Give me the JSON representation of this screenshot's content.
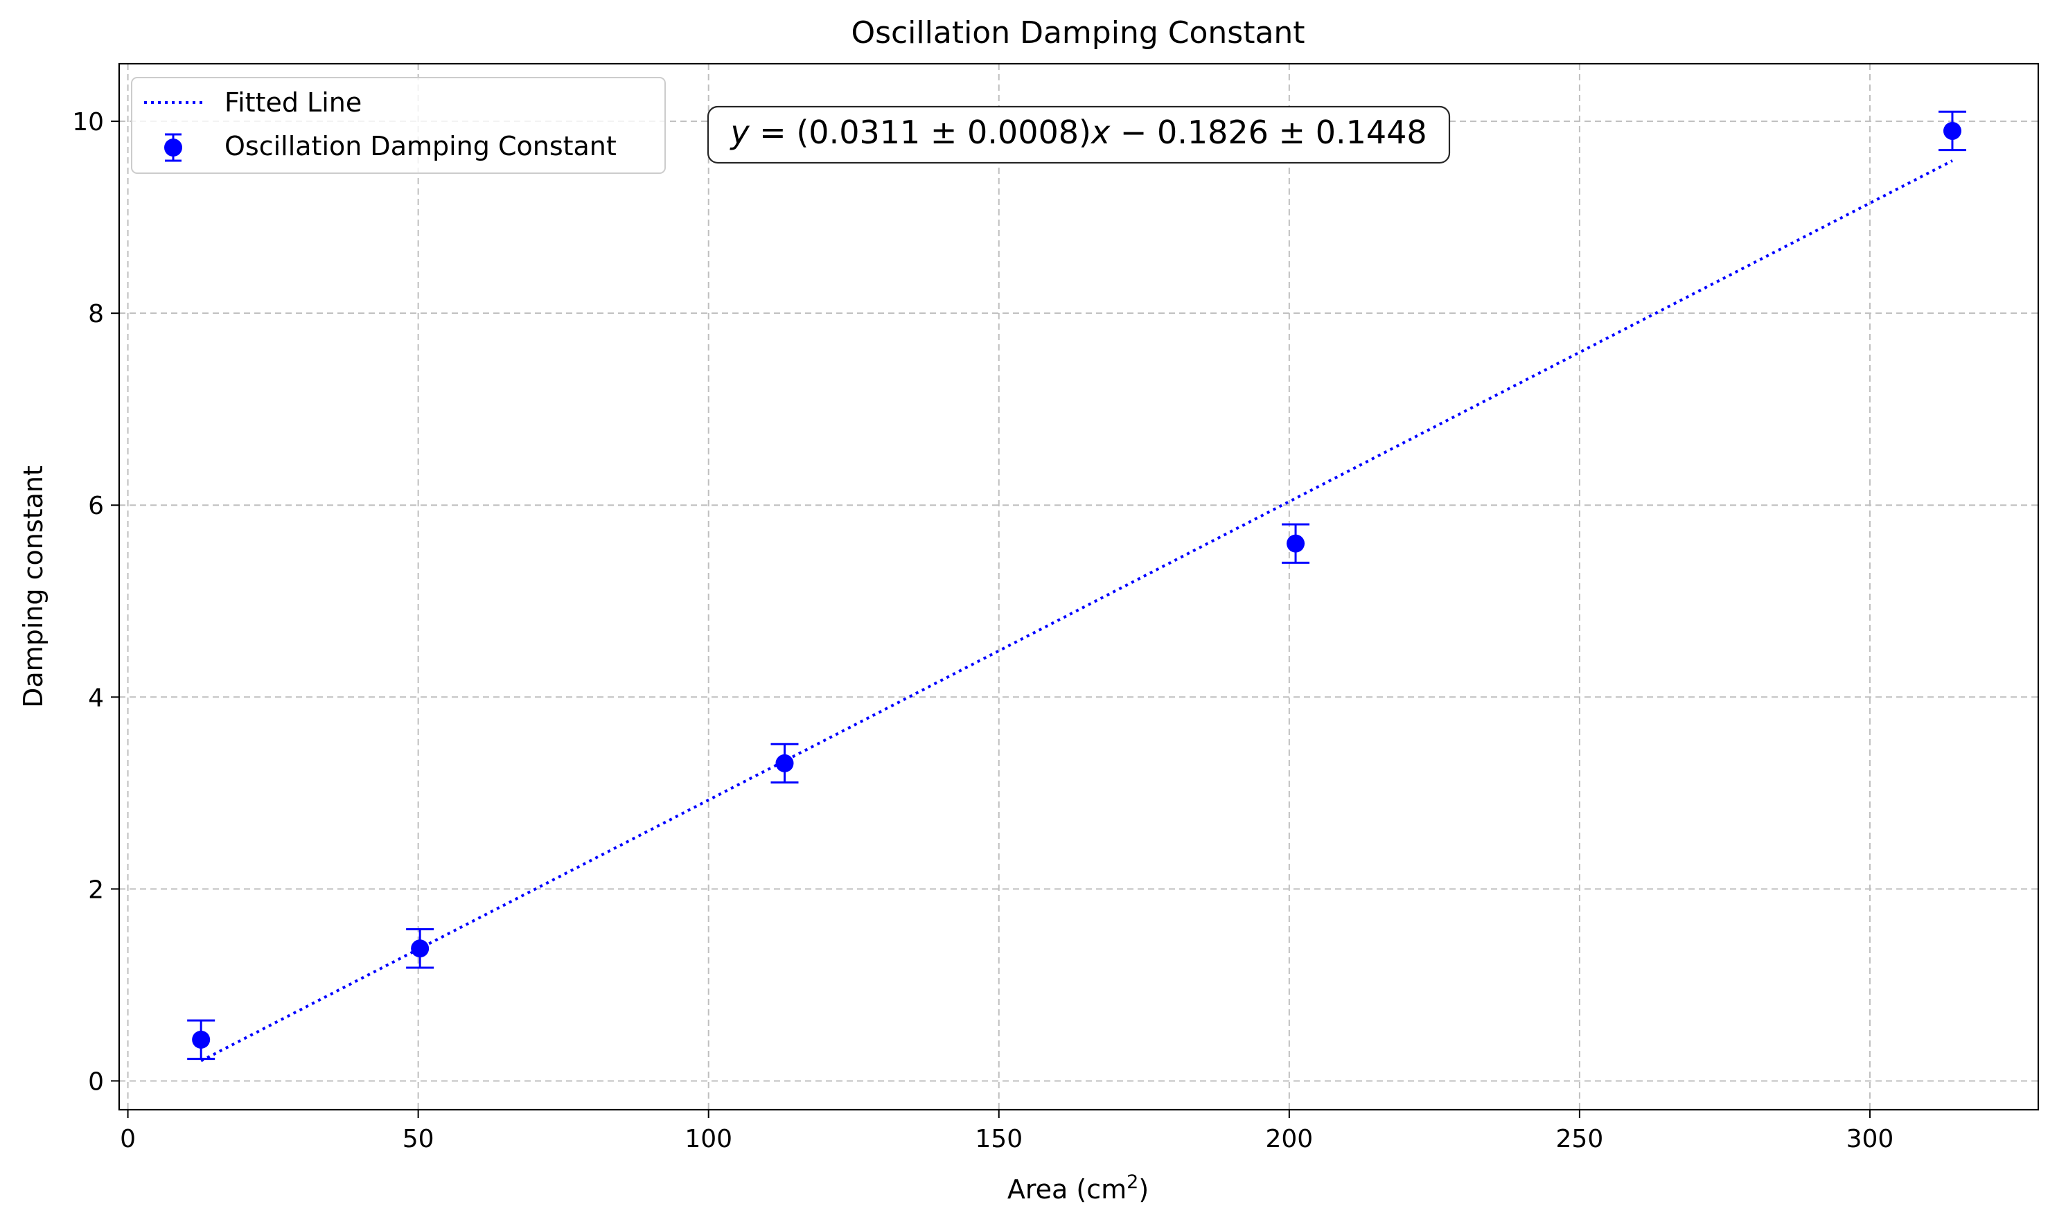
{
  "chart_data": {
    "type": "scatter",
    "title": "Oscillation Damping Constant",
    "xlabel": "Area (cm",
    "xlabel_superscript": "2",
    "xlabel_suffix": ")",
    "ylabel": "Damping constant",
    "xlim": [
      -1.5,
      329
    ],
    "ylim": [
      -0.3,
      10.6
    ],
    "xticks": [
      0,
      50,
      100,
      150,
      200,
      250,
      300
    ],
    "yticks": [
      0,
      2,
      4,
      6,
      8,
      10
    ],
    "grid": true,
    "legend_position": "top-left",
    "colors": {
      "series": "#0000ff",
      "grid": "#bfbfbf",
      "axes": "#000000"
    },
    "series": [
      {
        "name": "Oscillation Damping Constant",
        "style": "errorbar-points",
        "x": [
          12.6,
          50.3,
          113.1,
          201.1,
          314.2
        ],
        "y": [
          0.43,
          1.38,
          3.31,
          5.6,
          9.9
        ],
        "yerr": [
          0.2,
          0.2,
          0.2,
          0.2,
          0.2
        ]
      },
      {
        "name": "Fitted Line",
        "style": "dotted-line",
        "slope": 0.0311,
        "intercept": -0.1826,
        "x_range": [
          12.6,
          314.2
        ]
      }
    ],
    "annotation": {
      "prefix": "y",
      "equals": " = ",
      "paren_open": "(0.0311 ± 0.0008)",
      "var": "x",
      "rest": " − 0.1826 ± 0.1448"
    }
  }
}
